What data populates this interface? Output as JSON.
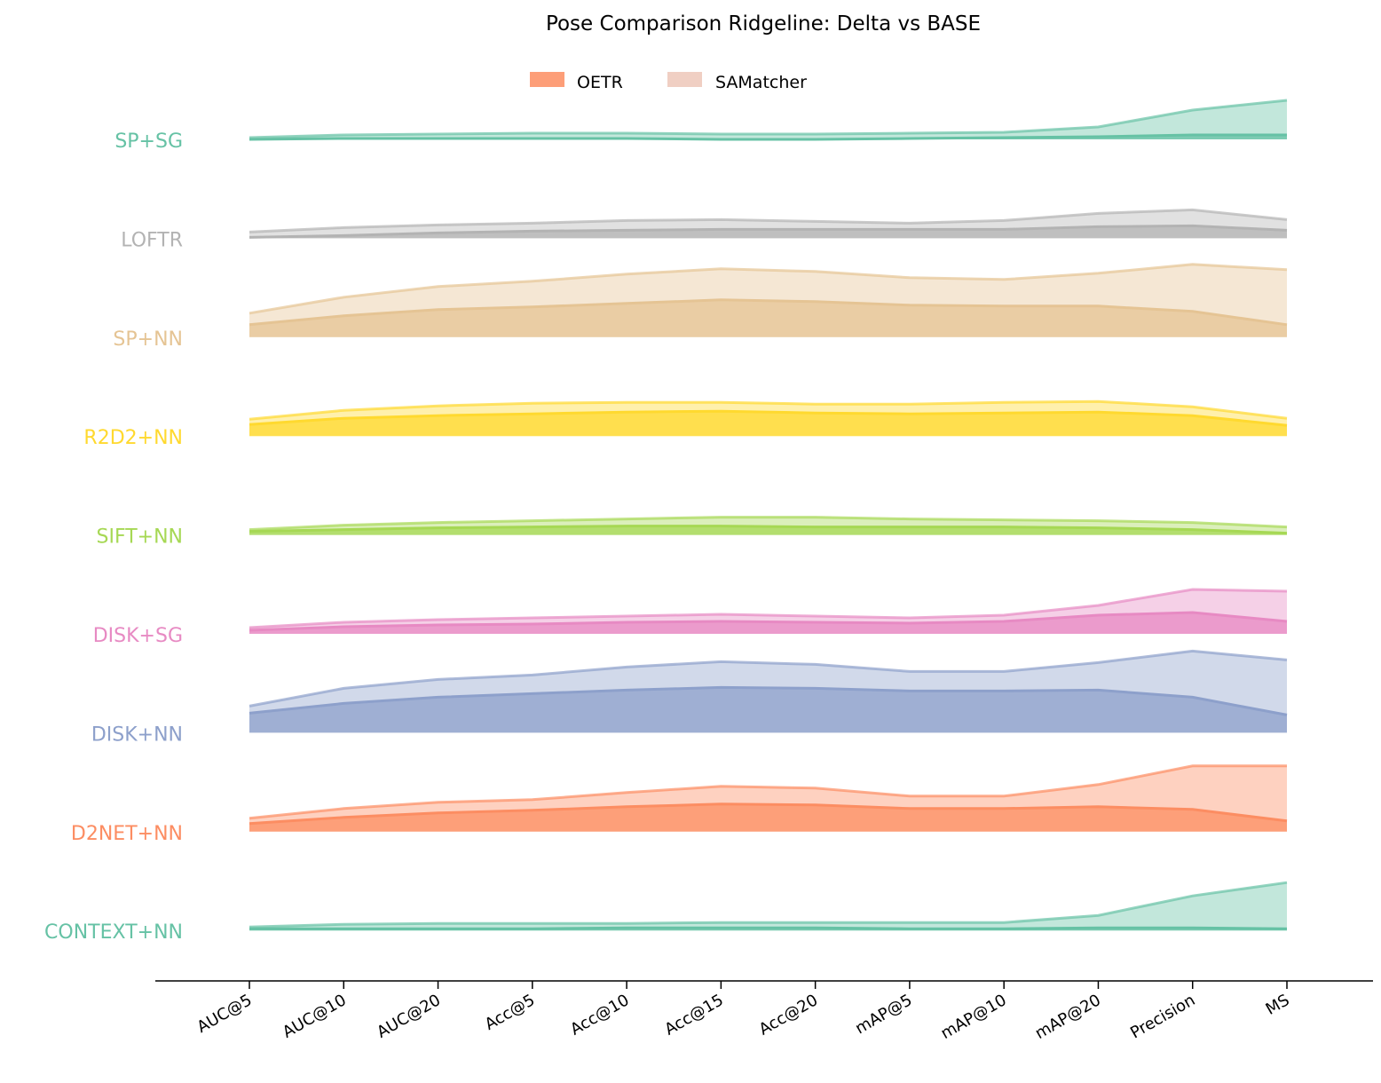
{
  "chart_data": {
    "type": "area",
    "subtype": "ridgeline",
    "title": "Pose Comparison Ridgeline: Delta vs BASE",
    "xlabel": "",
    "ylabel": "",
    "grid": false,
    "legend_placement": "top-center",
    "legend": [
      {
        "name": "OETR",
        "color": "#fc8d62"
      },
      {
        "name": "SAMatcher",
        "color": "#f0cfc3"
      }
    ],
    "categories": [
      "AUC@5",
      "AUC@10",
      "AUC@20",
      "Acc@5",
      "Acc@10",
      "Acc@15",
      "Acc@20",
      "mAP@5",
      "mAP@10",
      "mAP@20",
      "Precision",
      "MS"
    ],
    "ridges": [
      {
        "label": "SP+SG",
        "color": "#66c2a5",
        "OETR": [
          0,
          1,
          1,
          1,
          1,
          0,
          0,
          1,
          2,
          3,
          5,
          5
        ],
        "SAMatcher": [
          2,
          5,
          6,
          7,
          7,
          6,
          6,
          7,
          8,
          14,
          33,
          44
        ]
      },
      {
        "label": "LOFTR",
        "color": "#b3b3b3",
        "OETR": [
          1,
          3,
          6,
          8,
          9,
          10,
          10,
          10,
          10,
          13,
          14,
          9
        ],
        "SAMatcher": [
          7,
          12,
          15,
          17,
          20,
          21,
          19,
          17,
          20,
          28,
          32,
          21
        ]
      },
      {
        "label": "SP+NN",
        "color": "#e5c494",
        "OETR": [
          14,
          24,
          31,
          34,
          38,
          42,
          40,
          36,
          35,
          35,
          29,
          14
        ],
        "SAMatcher": [
          27,
          45,
          57,
          63,
          71,
          77,
          74,
          67,
          65,
          72,
          82,
          76
        ]
      },
      {
        "label": "R2D2+NN",
        "color": "#ffd92f",
        "OETR": [
          13,
          20,
          23,
          25,
          27,
          28,
          26,
          25,
          26,
          27,
          23,
          12
        ],
        "SAMatcher": [
          19,
          29,
          34,
          37,
          38,
          38,
          36,
          36,
          38,
          39,
          33,
          20
        ]
      },
      {
        "label": "SIFT+NN",
        "color": "#a6d854",
        "OETR": [
          4,
          6,
          8,
          9,
          10,
          10,
          9,
          9,
          9,
          8,
          6,
          2
        ],
        "SAMatcher": [
          6,
          11,
          14,
          16,
          18,
          20,
          20,
          18,
          17,
          16,
          14,
          9
        ]
      },
      {
        "label": "DISK+SG",
        "color": "#e78ac3",
        "OETR": [
          4,
          8,
          10,
          11,
          13,
          14,
          13,
          12,
          14,
          21,
          24,
          14
        ],
        "SAMatcher": [
          7,
          13,
          16,
          18,
          20,
          22,
          20,
          18,
          21,
          32,
          50,
          48
        ]
      },
      {
        "label": "DISK+NN",
        "color": "#8da0cb",
        "OETR": [
          22,
          33,
          40,
          44,
          48,
          51,
          50,
          47,
          47,
          48,
          40,
          20
        ],
        "SAMatcher": [
          30,
          50,
          60,
          65,
          74,
          80,
          77,
          69,
          69,
          79,
          92,
          82
        ]
      },
      {
        "label": "D2NET+NN",
        "color": "#fc8d62",
        "OETR": [
          9,
          16,
          21,
          24,
          28,
          31,
          30,
          26,
          26,
          28,
          25,
          12
        ],
        "SAMatcher": [
          15,
          26,
          33,
          36,
          44,
          51,
          49,
          40,
          40,
          53,
          74,
          74
        ]
      },
      {
        "label": "CONTEXT+NN",
        "color": "#66c2a5",
        "OETR": [
          2,
          2,
          2,
          2,
          3,
          3,
          3,
          2,
          2,
          3,
          3,
          2
        ],
        "SAMatcher": [
          4,
          7,
          8,
          8,
          8,
          9,
          9,
          9,
          9,
          17,
          39,
          54
        ]
      }
    ]
  }
}
